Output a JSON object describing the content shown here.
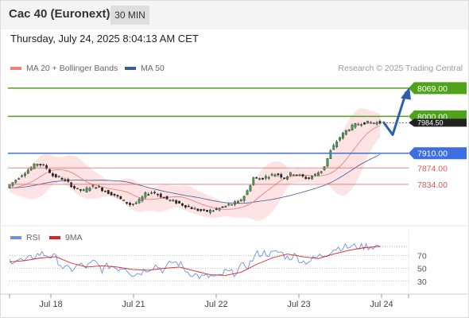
{
  "header": {
    "title": "Cac 40 (Euronext)",
    "timeframe": "30 MIN"
  },
  "datetime": "Thursday, July 24, 2025 8:04:13 AM CET",
  "legend": {
    "ma20": "MA 20 + Bollinger Bands",
    "ma50": "MA 50",
    "rsi": "RSI",
    "rsi_ma": "9MA"
  },
  "credit": "Research © 2025 Trading Central",
  "colors": {
    "resistance": "#4fa31a",
    "pivot": "#3d6fe0",
    "support": "#e0575b",
    "ma20": "#f08080",
    "ma50": "#3d5a99",
    "band": "#fcd9d9",
    "candle": "#333333",
    "rsi": "#6f8fe6",
    "rsi_ma": "#e02020",
    "arrow": "#2f5fa8"
  },
  "chart_data": [
    {
      "type": "candlestick",
      "x_ticks": [
        "Jul 18",
        "Jul 21",
        "Jul 22",
        "Jul 23",
        "Jul 24"
      ],
      "ylim": [
        7760,
        8090
      ],
      "levels": [
        {
          "label": "8069.00",
          "value": 8069,
          "kind": "resistance"
        },
        {
          "label": "8000.00",
          "value": 8000,
          "kind": "resistance"
        },
        {
          "label": "7910.00",
          "value": 7910,
          "kind": "pivot"
        },
        {
          "label": "7874.00",
          "value": 7874,
          "kind": "support"
        },
        {
          "label": "7834.00",
          "value": 7834,
          "kind": "support"
        }
      ],
      "last_price": {
        "label": "7984.50",
        "value": 7984.5
      },
      "forecast": [
        {
          "t": 0,
          "v": 7987
        },
        {
          "t": 1,
          "v": 7955
        },
        {
          "t": 2,
          "v": 8060
        }
      ],
      "price_path": [
        [
          0,
          7825
        ],
        [
          5,
          7842
        ],
        [
          10,
          7858
        ],
        [
          15,
          7872
        ],
        [
          20,
          7885
        ],
        [
          25,
          7878
        ],
        [
          30,
          7855
        ],
        [
          35,
          7850
        ],
        [
          40,
          7838
        ],
        [
          45,
          7822
        ],
        [
          50,
          7818
        ],
        [
          55,
          7830
        ],
        [
          60,
          7826
        ],
        [
          65,
          7815
        ],
        [
          70,
          7808
        ],
        [
          75,
          7795
        ],
        [
          80,
          7785
        ],
        [
          85,
          7790
        ],
        [
          90,
          7810
        ],
        [
          95,
          7816
        ],
        [
          100,
          7805
        ],
        [
          105,
          7796
        ],
        [
          110,
          7790
        ],
        [
          115,
          7783
        ],
        [
          120,
          7776
        ],
        [
          125,
          7770
        ],
        [
          130,
          7768
        ],
        [
          135,
          7772
        ],
        [
          140,
          7778
        ],
        [
          145,
          7785
        ],
        [
          150,
          7790
        ],
        [
          155,
          7810
        ],
        [
          160,
          7850
        ],
        [
          165,
          7848
        ],
        [
          170,
          7855
        ],
        [
          175,
          7860
        ],
        [
          180,
          7850
        ],
        [
          185,
          7862
        ],
        [
          190,
          7855
        ],
        [
          195,
          7848
        ],
        [
          200,
          7858
        ],
        [
          205,
          7870
        ],
        [
          210,
          7915
        ],
        [
          215,
          7945
        ],
        [
          220,
          7965
        ],
        [
          225,
          7978
        ],
        [
          230,
          7984
        ],
        [
          235,
          7985
        ],
        [
          240,
          7984.5
        ]
      ]
    },
    {
      "type": "line",
      "title": "RSI",
      "y_ticks": [
        70,
        50,
        30
      ],
      "ylim": [
        10,
        90
      ],
      "series": [
        {
          "name": "RSI",
          "values": [
            [
              0,
              62
            ],
            [
              5,
              64
            ],
            [
              10,
              60
            ],
            [
              15,
              68
            ],
            [
              20,
              73
            ],
            [
              25,
              70
            ],
            [
              30,
              66
            ],
            [
              35,
              50
            ],
            [
              40,
              48
            ],
            [
              45,
              55
            ],
            [
              50,
              52
            ],
            [
              55,
              60
            ],
            [
              60,
              48
            ],
            [
              65,
              55
            ],
            [
              70,
              50
            ],
            [
              75,
              52
            ],
            [
              80,
              40
            ],
            [
              85,
              44
            ],
            [
              90,
              50
            ],
            [
              95,
              55
            ],
            [
              100,
              46
            ],
            [
              105,
              60
            ],
            [
              110,
              58
            ],
            [
              115,
              45
            ],
            [
              120,
              40
            ],
            [
              125,
              36
            ],
            [
              130,
              38
            ],
            [
              135,
              35
            ],
            [
              140,
              45
            ],
            [
              145,
              42
            ],
            [
              150,
              52
            ],
            [
              155,
              55
            ],
            [
              160,
              72
            ],
            [
              165,
              74
            ],
            [
              170,
              72
            ],
            [
              175,
              76
            ],
            [
              180,
              66
            ],
            [
              185,
              70
            ],
            [
              190,
              60
            ],
            [
              195,
              62
            ],
            [
              200,
              68
            ],
            [
              205,
              72
            ],
            [
              210,
              80
            ],
            [
              215,
              83
            ],
            [
              220,
              83
            ],
            [
              225,
              84
            ],
            [
              230,
              84
            ],
            [
              235,
              84
            ],
            [
              240,
              84
            ]
          ]
        },
        {
          "name": "9MA",
          "values": [
            [
              0,
              60
            ],
            [
              10,
              62
            ],
            [
              20,
              66
            ],
            [
              30,
              68
            ],
            [
              40,
              58
            ],
            [
              50,
              52
            ],
            [
              60,
              54
            ],
            [
              70,
              52
            ],
            [
              80,
              48
            ],
            [
              90,
              47
            ],
            [
              100,
              50
            ],
            [
              110,
              52
            ],
            [
              120,
              46
            ],
            [
              130,
              40
            ],
            [
              140,
              39
            ],
            [
              150,
              44
            ],
            [
              160,
              56
            ],
            [
              170,
              66
            ],
            [
              180,
              72
            ],
            [
              190,
              68
            ],
            [
              200,
              65
            ],
            [
              210,
              72
            ],
            [
              220,
              78
            ],
            [
              230,
              82
            ],
            [
              240,
              84
            ]
          ]
        }
      ]
    }
  ]
}
